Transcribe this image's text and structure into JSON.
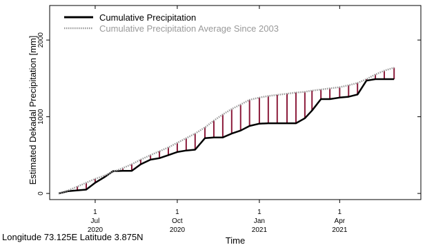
{
  "chart_data": {
    "type": "line",
    "xlabel": "Time",
    "ylabel": "Estimated Dekadal Precipitation [mm]",
    "ylim": [
      -80,
      2450
    ],
    "yticks": [
      0,
      1000,
      2000
    ],
    "xlim": [
      "2020-05-11",
      "2021-07-01"
    ],
    "xticks": [
      {
        "date": "2020-07-01",
        "day": "1",
        "month": "Jul",
        "year": "2020"
      },
      {
        "date": "2020-10-01",
        "day": "1",
        "month": "Oct",
        "year": "2020"
      },
      {
        "date": "2021-01-01",
        "day": "1",
        "month": "Jan",
        "year": "2021"
      },
      {
        "date": "2021-04-01",
        "day": "1",
        "month": "Apr",
        "year": "2021"
      }
    ],
    "legend_position": "top-left",
    "difference_bars": {
      "above_color": "#8b1a3a",
      "below_color": "#6e3b8a"
    },
    "series": [
      {
        "name": "Cumulative Precipitation",
        "style": "solid",
        "color": "#000000",
        "points": [
          [
            "2020-05-21",
            0
          ],
          [
            "2020-06-01",
            30
          ],
          [
            "2020-06-11",
            40
          ],
          [
            "2020-06-21",
            50
          ],
          [
            "2020-07-01",
            140
          ],
          [
            "2020-07-11",
            210
          ],
          [
            "2020-07-21",
            290
          ],
          [
            "2020-08-01",
            295
          ],
          [
            "2020-08-11",
            295
          ],
          [
            "2020-08-21",
            380
          ],
          [
            "2020-09-01",
            440
          ],
          [
            "2020-09-11",
            460
          ],
          [
            "2020-09-21",
            500
          ],
          [
            "2020-10-01",
            540
          ],
          [
            "2020-10-11",
            560
          ],
          [
            "2020-10-21",
            570
          ],
          [
            "2020-11-01",
            720
          ],
          [
            "2020-11-11",
            730
          ],
          [
            "2020-11-21",
            730
          ],
          [
            "2020-12-01",
            780
          ],
          [
            "2020-12-11",
            820
          ],
          [
            "2020-12-21",
            880
          ],
          [
            "2021-01-01",
            910
          ],
          [
            "2021-01-11",
            915
          ],
          [
            "2021-01-21",
            915
          ],
          [
            "2021-02-01",
            915
          ],
          [
            "2021-02-11",
            915
          ],
          [
            "2021-02-21",
            980
          ],
          [
            "2021-03-01",
            1080
          ],
          [
            "2021-03-11",
            1230
          ],
          [
            "2021-03-21",
            1230
          ],
          [
            "2021-04-01",
            1250
          ],
          [
            "2021-04-11",
            1260
          ],
          [
            "2021-04-21",
            1290
          ],
          [
            "2021-05-01",
            1470
          ],
          [
            "2021-05-11",
            1490
          ],
          [
            "2021-05-21",
            1490
          ],
          [
            "2021-06-01",
            1490
          ]
        ]
      },
      {
        "name": "Cumulative Precipitation Average Since 2003",
        "style": "dotted",
        "color": "#999999",
        "points": [
          [
            "2020-05-21",
            0
          ],
          [
            "2020-06-01",
            40
          ],
          [
            "2020-06-11",
            90
          ],
          [
            "2020-06-21",
            140
          ],
          [
            "2020-07-01",
            190
          ],
          [
            "2020-07-11",
            230
          ],
          [
            "2020-07-21",
            280
          ],
          [
            "2020-08-01",
            330
          ],
          [
            "2020-08-11",
            380
          ],
          [
            "2020-08-21",
            440
          ],
          [
            "2020-09-01",
            500
          ],
          [
            "2020-09-11",
            550
          ],
          [
            "2020-09-21",
            600
          ],
          [
            "2020-10-01",
            660
          ],
          [
            "2020-10-11",
            720
          ],
          [
            "2020-10-21",
            780
          ],
          [
            "2020-11-01",
            860
          ],
          [
            "2020-11-11",
            950
          ],
          [
            "2020-11-21",
            1030
          ],
          [
            "2020-12-01",
            1100
          ],
          [
            "2020-12-11",
            1160
          ],
          [
            "2020-12-21",
            1220
          ],
          [
            "2021-01-01",
            1250
          ],
          [
            "2021-01-11",
            1270
          ],
          [
            "2021-01-21",
            1285
          ],
          [
            "2021-02-01",
            1300
          ],
          [
            "2021-02-11",
            1315
          ],
          [
            "2021-02-21",
            1325
          ],
          [
            "2021-03-01",
            1340
          ],
          [
            "2021-03-11",
            1355
          ],
          [
            "2021-03-21",
            1370
          ],
          [
            "2021-04-01",
            1385
          ],
          [
            "2021-04-11",
            1410
          ],
          [
            "2021-04-21",
            1440
          ],
          [
            "2021-05-01",
            1490
          ],
          [
            "2021-05-11",
            1550
          ],
          [
            "2021-05-21",
            1600
          ],
          [
            "2021-06-01",
            1640
          ]
        ]
      }
    ]
  },
  "footer": {
    "location": "Longitude 73.125E Latitude 3.875N"
  }
}
